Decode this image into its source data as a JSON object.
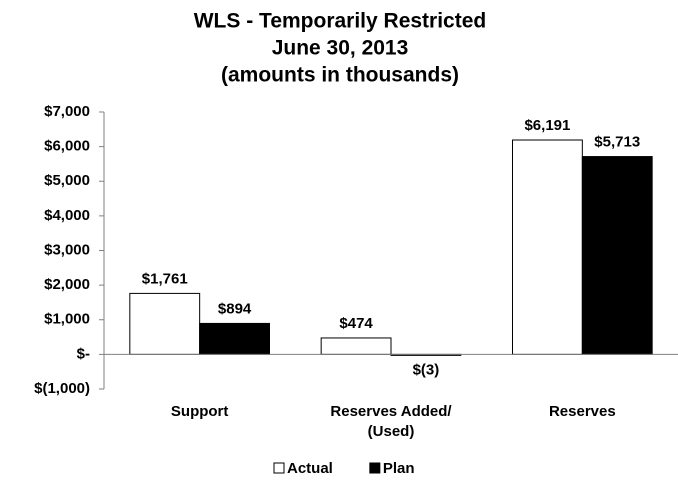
{
  "chart_data": {
    "type": "bar",
    "title": [
      "WLS - Temporarily Restricted",
      "June 30, 2013",
      "(amounts in thousands)"
    ],
    "categories": [
      [
        "Support"
      ],
      [
        "Reserves Added/",
        "(Used)"
      ],
      [
        "Reserves"
      ]
    ],
    "series": [
      {
        "name": "Actual",
        "color": "#ffffff",
        "values": [
          1761,
          474,
          6191
        ],
        "value_labels": [
          "$1,761",
          "$474",
          "$6,191"
        ]
      },
      {
        "name": "Plan",
        "color": "#000000",
        "values": [
          894,
          -3,
          5713
        ],
        "value_labels": [
          "$894",
          "$(3)",
          "$5,713"
        ]
      }
    ],
    "ylim": [
      -1000,
      7000
    ],
    "yticks": [
      {
        "value": -1000,
        "label": "$(1,000)"
      },
      {
        "value": 0,
        "label": "$-"
      },
      {
        "value": 1000,
        "label": "$1,000"
      },
      {
        "value": 2000,
        "label": "$2,000"
      },
      {
        "value": 3000,
        "label": "$3,000"
      },
      {
        "value": 4000,
        "label": "$4,000"
      },
      {
        "value": 5000,
        "label": "$5,000"
      },
      {
        "value": 6000,
        "label": "$6,000"
      },
      {
        "value": 7000,
        "label": "$7,000"
      }
    ],
    "grid": false,
    "legend": "bottom"
  }
}
